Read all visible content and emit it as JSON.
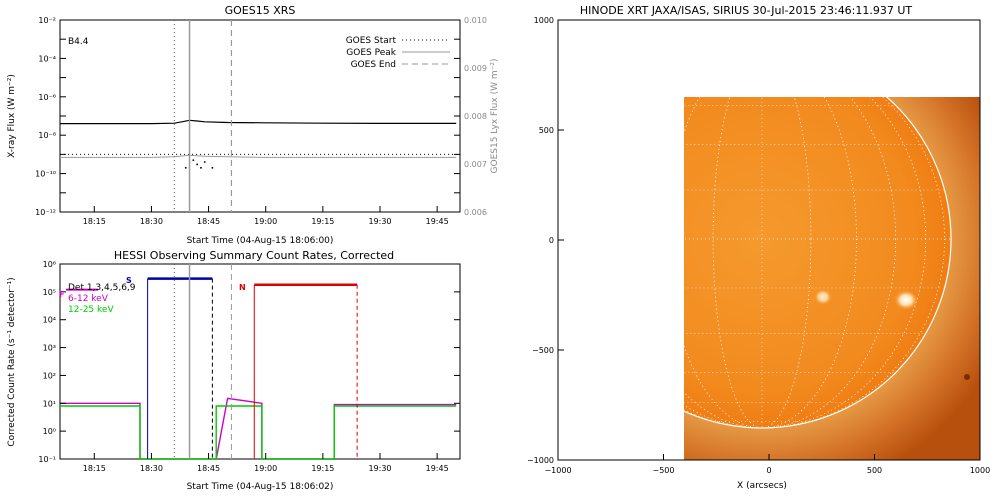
{
  "chart_data": [
    {
      "type": "line",
      "title": "GOES15 XRS",
      "xlabel": "Start Time (04-Aug-15 18:06:00)",
      "ylabel": "X-ray Flux (W m⁻²)",
      "ylabel_right": "GOES15 Lyx Flux (W m⁻²)",
      "x_ticks": [
        "18:15",
        "18:30",
        "18:45",
        "19:00",
        "19:15",
        "19:30",
        "19:45"
      ],
      "y_ticks": [
        "10⁻¹²",
        "10⁻¹⁰",
        "10⁻⁸",
        "10⁻⁶",
        "10⁻⁴",
        "10⁻²"
      ],
      "y2_ticks": [
        "0.006",
        "0.007",
        "0.008",
        "0.009",
        "0.010"
      ],
      "ylim": [
        1e-12,
        0.01
      ],
      "y_scale": "log",
      "y2lim": [
        0.006,
        0.01
      ],
      "annotation": "B4.4",
      "legend": [
        "GOES Start",
        "GOES Peak",
        "GOES End"
      ],
      "legend_position": "top-right",
      "markers": {
        "goes_start": "18:36",
        "goes_peak": "18:40",
        "goes_end": "18:51"
      },
      "series": [
        {
          "name": "long",
          "color": "#000000",
          "x": [
            "18:06",
            "18:30",
            "18:36",
            "18:38",
            "18:40",
            "18:42",
            "18:44",
            "18:50",
            "19:00",
            "19:15",
            "19:30",
            "19:50"
          ],
          "values": [
            4e-08,
            4e-08,
            4.2e-08,
            5e-08,
            6e-08,
            5.5e-08,
            5e-08,
            4.6e-08,
            4.4e-08,
            4.2e-08,
            4.1e-08,
            4.1e-08
          ]
        },
        {
          "name": "short",
          "color": "#999999",
          "x": [
            "18:06",
            "18:30",
            "18:36",
            "18:40",
            "18:44",
            "18:50",
            "19:00",
            "19:15",
            "19:30",
            "19:50"
          ],
          "values": [
            7e-10,
            7e-10,
            7.5e-10,
            9e-10,
            8e-10,
            7.5e-10,
            7e-10,
            7e-10,
            7e-10,
            7e-10
          ]
        }
      ]
    },
    {
      "type": "line",
      "title": "HESSI Observing Summary Count Rates, Corrected",
      "xlabel": "Start Time (04-Aug-15 18:06:02)",
      "ylabel": "Corrected Count Rate (s⁻¹ detector⁻¹)",
      "x_ticks": [
        "18:15",
        "18:30",
        "18:45",
        "19:00",
        "19:15",
        "19:30",
        "19:45"
      ],
      "y_ticks": [
        "10⁻¹",
        "10⁰",
        "10¹",
        "10²",
        "10³",
        "10⁴",
        "10⁵",
        "10⁶"
      ],
      "ylim": [
        0.1,
        1000000
      ],
      "y_scale": "log",
      "legend": [
        "Det 1,3,4,5,6,9",
        "6-12 keV",
        "12-25 keV"
      ],
      "legend_colors": [
        "#000000",
        "#cc00cc",
        "#00cc00"
      ],
      "bar_labels": [
        "S",
        "N",
        "F"
      ],
      "series": [
        {
          "name": "6-12 keV",
          "color": "#cc00cc",
          "x": [
            "18:06",
            "18:27",
            "18:27",
            "18:47",
            "18:50",
            "18:55",
            "18:59",
            "18:59",
            "19:18",
            "19:18",
            "19:50"
          ],
          "values": [
            10,
            10,
            0.1,
            0.1,
            15,
            12,
            10,
            0.1,
            0.1,
            9,
            9
          ]
        },
        {
          "name": "12-25 keV",
          "color": "#00cc00",
          "x": [
            "18:06",
            "18:27",
            "18:27",
            "18:47",
            "18:47",
            "18:59",
            "18:59",
            "19:18",
            "19:18",
            "19:50"
          ],
          "values": [
            8,
            8,
            0.1,
            0.1,
            8,
            8,
            0.1,
            0.1,
            8,
            8
          ]
        }
      ]
    },
    {
      "type": "heatmap",
      "title": "HINODE XRT JAXA/ISAS, SIRIUS 30-Jul-2015 23:46:11.937 UT",
      "xlabel": "X (arcsecs)",
      "ylabel": "",
      "x_ticks": [
        "−1000",
        "−500",
        "0",
        "500",
        "1000"
      ],
      "y_ticks": [
        "−1000",
        "−500",
        "0",
        "500",
        "1000"
      ],
      "xlim": [
        -1000,
        1000
      ],
      "ylim": [
        -1000,
        1000
      ],
      "colors": {
        "disk": "#ef7d13",
        "limb": "#e8a04a",
        "background": "#c45a10"
      },
      "grid": true
    }
  ]
}
